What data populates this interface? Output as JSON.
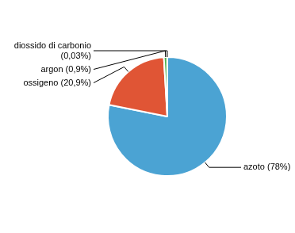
{
  "chart_data": {
    "type": "pie",
    "categories": [
      "azoto (78%)",
      "ossigeno (20,9%)",
      "argon (0,9%)",
      "diossido di carbonio\n(0,03%)"
    ],
    "values": [
      78.0,
      20.9,
      0.9,
      0.03
    ],
    "colors": [
      "#4ba3d3",
      "#e05535",
      "#4db34d",
      "#3a8fc0"
    ]
  }
}
